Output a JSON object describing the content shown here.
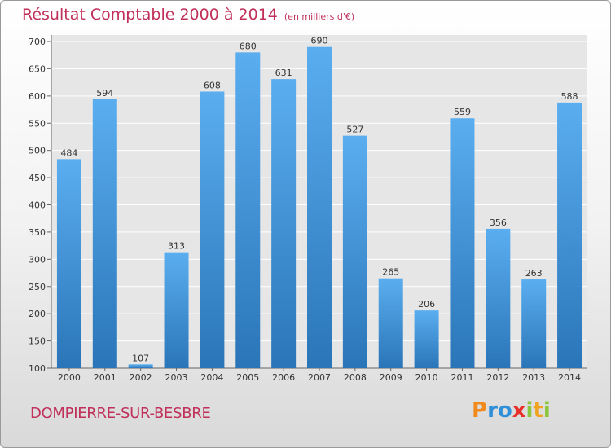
{
  "chart_data": {
    "type": "bar",
    "title": "Résultat Comptable 2000 à 2014",
    "subtitle": "(en milliers d'€)",
    "categories": [
      "2000",
      "2001",
      "2002",
      "2003",
      "2004",
      "2005",
      "2006",
      "2007",
      "2008",
      "2009",
      "2010",
      "2011",
      "2012",
      "2013",
      "2014"
    ],
    "values": [
      484,
      594,
      107,
      313,
      608,
      680,
      631,
      690,
      527,
      265,
      206,
      559,
      356,
      263,
      588
    ],
    "ylim": [
      100,
      700
    ],
    "yticks": [
      100,
      150,
      200,
      250,
      300,
      350,
      400,
      450,
      500,
      550,
      600,
      650,
      700
    ],
    "grid": true,
    "bar_color_top": "#5aaef0",
    "bar_color_bottom": "#2a75b8",
    "grid_color": "#ffffff",
    "plot_background": "#e6e6e6"
  },
  "footer": {
    "city": "DOMPIERRE-SUR-BESBRE",
    "logo_letters": [
      "P",
      "r",
      "o",
      "x",
      "i",
      "t",
      "i"
    ],
    "logo_colors": [
      "#f08a1c",
      "#2f8fd8",
      "#2f8fd8",
      "#e8302a",
      "#8cc63e",
      "#f0a31c",
      "#8cc63e"
    ]
  }
}
